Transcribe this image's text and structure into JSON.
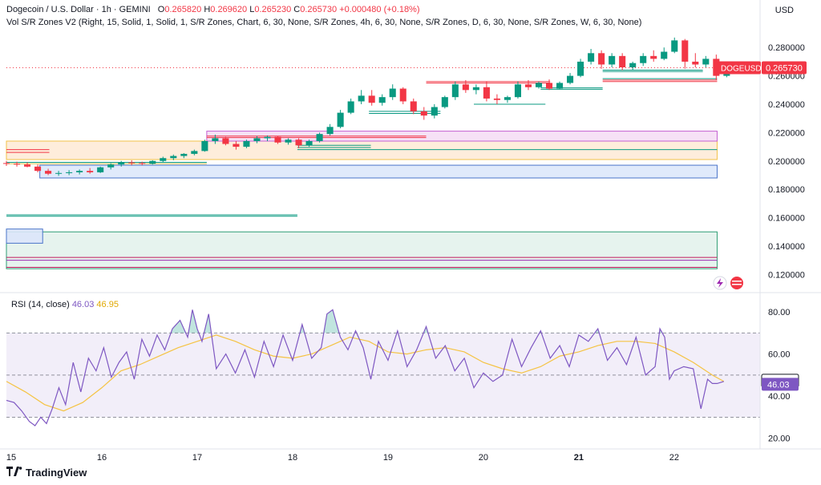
{
  "header": {
    "symbol": "Dogecoin / U.S. Dollar · 1h · GEMINI",
    "o_label": "O",
    "o_value": "0.265820",
    "h_label": "H",
    "h_value": "0.269620",
    "l_label": "L",
    "l_value": "0.265230",
    "c_label": "C",
    "c_value": "0.265730",
    "change": "+0.000480 (+0.18%)",
    "indicator": "Vol S/R Zones V2 (Right, 15, Solid, 1, Solid, 1, S/R Zones, Chart, 6, 30, None, S/R Zones, 4h, 6, 30, None, S/R Zones, D, 6, 30, None, S/R Zones, W, 6, 30, None)"
  },
  "currency": "USD",
  "rsi_header": {
    "label": "RSI (14, close)",
    "rsi_value": "46.03",
    "ma_value": "46.95"
  },
  "footer": {
    "brand": "TradingView",
    "logo_icon": "tradingview-logo-icon"
  },
  "colors": {
    "up": "#089981",
    "down": "#f23645",
    "rsi_line": "#7e57c2",
    "rsi_ma": "#f5c342",
    "rsi_band": "#7e57c2",
    "price_tag": "#f23645",
    "rsi_ma_tag": "#ffffff",
    "rsi_tag": "#7e57c2"
  },
  "chart_data": [
    {
      "type": "candlestick",
      "symbol": "DOGEUSD",
      "last_price": 0.26573,
      "last_price_label": "0.265730",
      "symbol_tag": "DOGEUSD",
      "ylim": [
        0.11,
        0.292
      ],
      "yticks": [
        0.12,
        0.14,
        0.16,
        0.18,
        0.2,
        0.22,
        0.24,
        0.26,
        0.28
      ],
      "ytick_labels": [
        "0.120000",
        "0.140000",
        "0.160000",
        "0.180000",
        "0.200000",
        "0.220000",
        "0.240000",
        "0.260000",
        "0.280000"
      ],
      "x_labels": [
        "15",
        "16",
        "17",
        "18",
        "19",
        "20",
        "21",
        "22"
      ],
      "x_label_days": [
        15,
        16,
        17,
        18,
        19,
        20,
        21,
        22
      ],
      "x_bold_labels": [
        "21"
      ],
      "x_start_day": 15,
      "x_end_day": 22.9,
      "candles": [
        [
          0.1985,
          0.2,
          0.1965,
          0.198
        ],
        [
          0.198,
          0.1995,
          0.196,
          0.1975
        ],
        [
          0.1975,
          0.199,
          0.1955,
          0.196
        ],
        [
          0.196,
          0.1975,
          0.192,
          0.193
        ],
        [
          0.193,
          0.1945,
          0.19,
          0.191
        ],
        [
          0.191,
          0.193,
          0.1895,
          0.1915
        ],
        [
          0.1915,
          0.1935,
          0.19,
          0.192
        ],
        [
          0.192,
          0.194,
          0.1905,
          0.193
        ],
        [
          0.193,
          0.195,
          0.191,
          0.192
        ],
        [
          0.192,
          0.196,
          0.1915,
          0.1955
        ],
        [
          0.1955,
          0.1985,
          0.194,
          0.1975
        ],
        [
          0.1975,
          0.2,
          0.196,
          0.199
        ],
        [
          0.199,
          0.2005,
          0.197,
          0.1985
        ],
        [
          0.1985,
          0.1995,
          0.197,
          0.198
        ],
        [
          0.198,
          0.2005,
          0.1975,
          0.2
        ],
        [
          0.2,
          0.203,
          0.199,
          0.202
        ],
        [
          0.202,
          0.2045,
          0.2005,
          0.2035
        ],
        [
          0.2035,
          0.2055,
          0.202,
          0.205
        ],
        [
          0.205,
          0.208,
          0.204,
          0.207
        ],
        [
          0.207,
          0.215,
          0.2065,
          0.214
        ],
        [
          0.214,
          0.2185,
          0.212,
          0.216
        ],
        [
          0.216,
          0.217,
          0.211,
          0.212
        ],
        [
          0.212,
          0.214,
          0.208,
          0.21
        ],
        [
          0.21,
          0.215,
          0.209,
          0.214
        ],
        [
          0.214,
          0.2175,
          0.2125,
          0.216
        ],
        [
          0.216,
          0.218,
          0.214,
          0.217
        ],
        [
          0.217,
          0.2175,
          0.212,
          0.213
        ],
        [
          0.213,
          0.216,
          0.2115,
          0.215
        ],
        [
          0.215,
          0.216,
          0.209,
          0.211
        ],
        [
          0.211,
          0.215,
          0.21,
          0.214
        ],
        [
          0.214,
          0.22,
          0.213,
          0.219
        ],
        [
          0.219,
          0.226,
          0.218,
          0.224
        ],
        [
          0.224,
          0.236,
          0.223,
          0.234
        ],
        [
          0.234,
          0.244,
          0.233,
          0.242
        ],
        [
          0.242,
          0.25,
          0.24,
          0.246
        ],
        [
          0.246,
          0.25,
          0.239,
          0.241
        ],
        [
          0.241,
          0.247,
          0.239,
          0.245
        ],
        [
          0.245,
          0.254,
          0.243,
          0.251
        ],
        [
          0.251,
          0.252,
          0.24,
          0.242
        ],
        [
          0.242,
          0.244,
          0.233,
          0.235
        ],
        [
          0.235,
          0.238,
          0.229,
          0.232
        ],
        [
          0.232,
          0.24,
          0.23,
          0.238
        ],
        [
          0.238,
          0.246,
          0.237,
          0.245
        ],
        [
          0.245,
          0.256,
          0.243,
          0.254
        ],
        [
          0.254,
          0.257,
          0.248,
          0.25
        ],
        [
          0.25,
          0.254,
          0.247,
          0.252
        ],
        [
          0.252,
          0.256,
          0.242,
          0.244
        ],
        [
          0.244,
          0.247,
          0.24,
          0.243
        ],
        [
          0.243,
          0.246,
          0.241,
          0.245
        ],
        [
          0.245,
          0.256,
          0.244,
          0.254
        ],
        [
          0.254,
          0.257,
          0.25,
          0.252
        ],
        [
          0.252,
          0.256,
          0.251,
          0.255
        ],
        [
          0.255,
          0.2575,
          0.25,
          0.251
        ],
        [
          0.251,
          0.256,
          0.2505,
          0.255
        ],
        [
          0.255,
          0.262,
          0.254,
          0.26
        ],
        [
          0.26,
          0.272,
          0.259,
          0.27
        ],
        [
          0.27,
          0.279,
          0.268,
          0.276
        ],
        [
          0.276,
          0.278,
          0.265,
          0.268
        ],
        [
          0.268,
          0.276,
          0.266,
          0.274
        ],
        [
          0.274,
          0.276,
          0.264,
          0.266
        ],
        [
          0.266,
          0.27,
          0.264,
          0.269
        ],
        [
          0.269,
          0.276,
          0.267,
          0.274
        ],
        [
          0.274,
          0.278,
          0.27,
          0.272
        ],
        [
          0.272,
          0.28,
          0.271,
          0.277
        ],
        [
          0.277,
          0.287,
          0.276,
          0.285
        ],
        [
          0.285,
          0.286,
          0.265,
          0.27
        ],
        [
          0.27,
          0.276,
          0.266,
          0.268
        ],
        [
          0.268,
          0.274,
          0.266,
          0.272
        ],
        [
          0.272,
          0.275,
          0.257,
          0.26
        ],
        [
          0.26,
          0.267,
          0.259,
          0.266
        ]
      ],
      "zones": [
        {
          "x0": 15.0,
          "x1": 22.45,
          "y0": 0.201,
          "y1": 0.214,
          "fill": "#fde7cf",
          "stroke": "#f2c24a",
          "opacity": 0.75
        },
        {
          "x0": 15.35,
          "x1": 22.45,
          "y0": 0.188,
          "y1": 0.197,
          "fill": "#dbe6fa",
          "stroke": "#4a74c9",
          "opacity": 0.85
        },
        {
          "x0": 17.1,
          "x1": 22.45,
          "y0": 0.214,
          "y1": 0.221,
          "fill": "#f4dcf5",
          "stroke": "#c45fd1",
          "opacity": 0.85
        },
        {
          "x0": 15.0,
          "x1": 22.45,
          "y0": 0.124,
          "y1": 0.15,
          "fill": "#e3f2ec",
          "stroke": "#2f9e75",
          "opacity": 0.9
        },
        {
          "x0": 15.0,
          "x1": 15.38,
          "y0": 0.142,
          "y1": 0.152,
          "fill": "#dbe6fa",
          "stroke": "#4a74c9",
          "opacity": 0.9
        }
      ],
      "lines": [
        {
          "x0": 15.0,
          "x1": 22.45,
          "y": 0.132,
          "color": "#c2185b"
        },
        {
          "x0": 15.0,
          "x1": 22.45,
          "y": 0.13,
          "color": "#9c27b0"
        },
        {
          "x0": 15.0,
          "x1": 22.45,
          "y": 0.125,
          "color": "#c2185b"
        },
        {
          "x0": 15.0,
          "x1": 18.05,
          "y": 0.162,
          "color": "#089981"
        },
        {
          "x0": 15.0,
          "x1": 18.05,
          "y": 0.161,
          "color": "#089981"
        },
        {
          "x0": 15.0,
          "x1": 15.45,
          "y": 0.208,
          "color": "#f23645"
        },
        {
          "x0": 15.0,
          "x1": 15.45,
          "y": 0.206,
          "color": "#f23645"
        },
        {
          "x0": 15.0,
          "x1": 17.1,
          "y": 0.199,
          "color": "#089981"
        },
        {
          "x0": 15.0,
          "x1": 17.1,
          "y": 0.198,
          "color": "#f2c24a"
        },
        {
          "x0": 17.1,
          "x1": 19.4,
          "y": 0.2175,
          "color": "#f23645"
        },
        {
          "x0": 17.1,
          "x1": 19.4,
          "y": 0.2165,
          "color": "#f23645"
        },
        {
          "x0": 18.05,
          "x1": 18.82,
          "y": 0.211,
          "color": "#089981"
        },
        {
          "x0": 18.05,
          "x1": 18.82,
          "y": 0.2095,
          "color": "#089981"
        },
        {
          "x0": 18.05,
          "x1": 22.45,
          "y": 0.208,
          "color": "#089981"
        },
        {
          "x0": 18.8,
          "x1": 19.55,
          "y": 0.235,
          "color": "#089981"
        },
        {
          "x0": 18.8,
          "x1": 19.55,
          "y": 0.2335,
          "color": "#089981"
        },
        {
          "x0": 19.4,
          "x1": 20.7,
          "y": 0.256,
          "color": "#f23645"
        },
        {
          "x0": 19.4,
          "x1": 20.7,
          "y": 0.255,
          "color": "#f23645"
        },
        {
          "x0": 19.9,
          "x1": 20.65,
          "y": 0.24,
          "color": "#089981"
        },
        {
          "x0": 20.6,
          "x1": 21.25,
          "y": 0.2515,
          "color": "#089981"
        },
        {
          "x0": 20.6,
          "x1": 21.25,
          "y": 0.2505,
          "color": "#089981"
        },
        {
          "x0": 21.25,
          "x1": 22.45,
          "y": 0.258,
          "color": "#089981"
        },
        {
          "x0": 21.25,
          "x1": 22.45,
          "y": 0.257,
          "color": "#f23645"
        },
        {
          "x0": 21.25,
          "x1": 22.45,
          "y": 0.256,
          "color": "#f23645"
        },
        {
          "x0": 21.25,
          "x1": 22.3,
          "y": 0.264,
          "color": "#089981"
        },
        {
          "x0": 21.25,
          "x1": 22.3,
          "y": 0.263,
          "color": "#089981"
        },
        {
          "x0": 15.0,
          "x1": 22.9,
          "y": 0.26573,
          "color": "#f23645",
          "dotted": true
        }
      ]
    },
    {
      "type": "line",
      "title": "RSI (14, close)",
      "ylim": [
        18,
        88
      ],
      "yticks": [
        20,
        40,
        60,
        80
      ],
      "ytick_labels": [
        "20.00",
        "40.00",
        "60.00",
        "80.00"
      ],
      "band": [
        30,
        70
      ],
      "overbought": 70,
      "oversold": 30,
      "midline": 50,
      "x_start_day": 15,
      "x_end_day": 22.9,
      "rsi_last": 46.03,
      "rsi_last_label": "46.03",
      "ma_last": 46.95,
      "ma_last_label": "46.95",
      "series": [
        {
          "name": "RSI",
          "x": [
            15.0,
            15.08,
            15.16,
            15.24,
            15.3,
            15.36,
            15.42,
            15.48,
            15.55,
            15.62,
            15.7,
            15.78,
            15.86,
            15.94,
            16.02,
            16.1,
            16.18,
            16.26,
            16.34,
            16.42,
            16.5,
            16.58,
            16.66,
            16.74,
            16.82,
            16.9,
            16.95,
            17.0,
            17.05,
            17.12,
            17.2,
            17.3,
            17.4,
            17.5,
            17.6,
            17.7,
            17.8,
            17.9,
            18.0,
            18.1,
            18.2,
            18.3,
            18.36,
            18.42,
            18.5,
            18.58,
            18.66,
            18.74,
            18.82,
            18.9,
            19.0,
            19.1,
            19.2,
            19.3,
            19.4,
            19.5,
            19.6,
            19.7,
            19.8,
            19.9,
            20.0,
            20.1,
            20.2,
            20.3,
            20.4,
            20.5,
            20.6,
            20.7,
            20.8,
            20.9,
            21.0,
            21.1,
            21.2,
            21.3,
            21.4,
            21.5,
            21.6,
            21.7,
            21.8,
            21.85,
            21.9,
            21.95,
            22.0,
            22.1,
            22.2,
            22.28,
            22.35,
            22.4,
            22.45,
            22.52
          ],
          "values": [
            38,
            37,
            33,
            28,
            26,
            30,
            27,
            34,
            44,
            36,
            56,
            42,
            58,
            52,
            63,
            49,
            56,
            61,
            48,
            67,
            59,
            69,
            62,
            72,
            76,
            68,
            81,
            72,
            66,
            79,
            53,
            60,
            51,
            62,
            49,
            66,
            54,
            69,
            57,
            74,
            58,
            63,
            79,
            81,
            68,
            62,
            71,
            63,
            48,
            66,
            57,
            71,
            54,
            62,
            73,
            58,
            64,
            52,
            58,
            44,
            51,
            47,
            50,
            67,
            54,
            63,
            71,
            58,
            64,
            54,
            69,
            66,
            72,
            57,
            63,
            55,
            68,
            50,
            54,
            72,
            68,
            48,
            52,
            54,
            53,
            34,
            48,
            46,
            46,
            47
          ]
        },
        {
          "name": "RSI MA",
          "x": [
            15.0,
            15.2,
            15.4,
            15.6,
            15.8,
            16.0,
            16.2,
            16.4,
            16.6,
            16.8,
            17.0,
            17.2,
            17.4,
            17.6,
            17.8,
            18.0,
            18.2,
            18.4,
            18.6,
            18.8,
            19.0,
            19.2,
            19.4,
            19.6,
            19.8,
            20.0,
            20.2,
            20.4,
            20.6,
            20.8,
            21.0,
            21.2,
            21.4,
            21.6,
            21.8,
            22.0,
            22.2,
            22.4,
            22.52
          ],
          "values": [
            47,
            42,
            36,
            33,
            37,
            44,
            52,
            55,
            59,
            63,
            66,
            69,
            66,
            62,
            59,
            58,
            60,
            64,
            68,
            66,
            61,
            60,
            62,
            63,
            61,
            56,
            53,
            51,
            54,
            59,
            61,
            64,
            66,
            66,
            65,
            61,
            56,
            50,
            47
          ]
        }
      ]
    }
  ]
}
